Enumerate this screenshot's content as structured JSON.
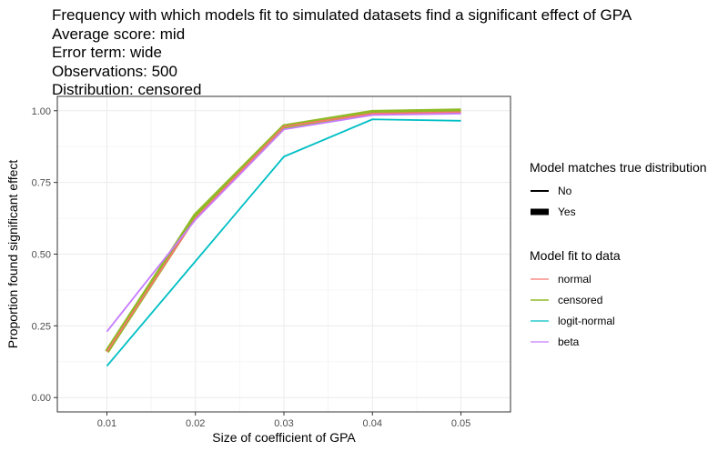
{
  "title_lines": [
    "Frequency with which models fit to simulated datasets find a significant effect of GPA",
    "Average score: mid",
    "Error term: wide",
    "Observations: 500",
    "Distribution: censored"
  ],
  "legend_linewidth": {
    "title": "Model matches true distribution",
    "items": [
      {
        "label": "No"
      },
      {
        "label": "Yes"
      }
    ]
  },
  "legend_color": {
    "title": "Model fit to data",
    "items": [
      {
        "label": "normal",
        "color": "#F8766D"
      },
      {
        "label": "censored",
        "color": "#7CAE00"
      },
      {
        "label": "logit-normal",
        "color": "#00BFC4"
      },
      {
        "label": "beta",
        "color": "#C77CFF"
      }
    ]
  },
  "chart_data": {
    "type": "line",
    "xlabel": "Size of coefficient of GPA",
    "ylabel": "Proportion found significant effect",
    "x": [
      0.01,
      0.02,
      0.03,
      0.04,
      0.05
    ],
    "x_ticks": [
      "0.01",
      "0.02",
      "0.03",
      "0.04",
      "0.05"
    ],
    "y_ticks": [
      "0.00",
      "0.25",
      "0.50",
      "0.75",
      "1.00"
    ],
    "xlim": [
      0.0044,
      0.0556
    ],
    "ylim": [
      -0.05,
      1.05
    ],
    "grid": true,
    "series": [
      {
        "name": "normal",
        "color": "#F8766D",
        "matches_true": "No",
        "values": [
          0.16,
          0.625,
          0.945,
          0.99,
          0.995
        ]
      },
      {
        "name": "censored",
        "color": "#7CAE00",
        "matches_true": "Yes",
        "values": [
          0.16,
          0.635,
          0.945,
          0.995,
          1.0
        ]
      },
      {
        "name": "logit-normal",
        "color": "#00BFC4",
        "matches_true": "No",
        "values": [
          0.11,
          0.475,
          0.84,
          0.97,
          0.965
        ]
      },
      {
        "name": "beta",
        "color": "#C77CFF",
        "matches_true": "No",
        "values": [
          0.23,
          0.62,
          0.935,
          0.985,
          0.99
        ]
      }
    ]
  }
}
